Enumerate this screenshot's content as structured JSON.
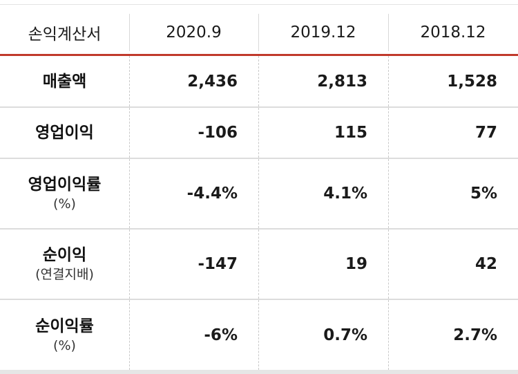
{
  "table": {
    "headers": [
      "손익계산서",
      "2020.9",
      "2019.12",
      "2018.12"
    ],
    "rows": [
      {
        "label": "매출액",
        "sublabel": "",
        "values": [
          "2,436",
          "2,813",
          "1,528"
        ]
      },
      {
        "label": "영업이익",
        "sublabel": "",
        "values": [
          "-106",
          "115",
          "77"
        ]
      },
      {
        "label": "영업이익률",
        "sublabel": "(%)",
        "values": [
          "-4.4%",
          "4.1%",
          "5%"
        ]
      },
      {
        "label": "순이익",
        "sublabel": "(연결지배)",
        "values": [
          "-147",
          "19",
          "42"
        ]
      },
      {
        "label": "순이익률",
        "sublabel": "(%)",
        "values": [
          "-6%",
          "0.7%",
          "2.7%"
        ]
      }
    ],
    "accent_color": "#c0392b"
  }
}
